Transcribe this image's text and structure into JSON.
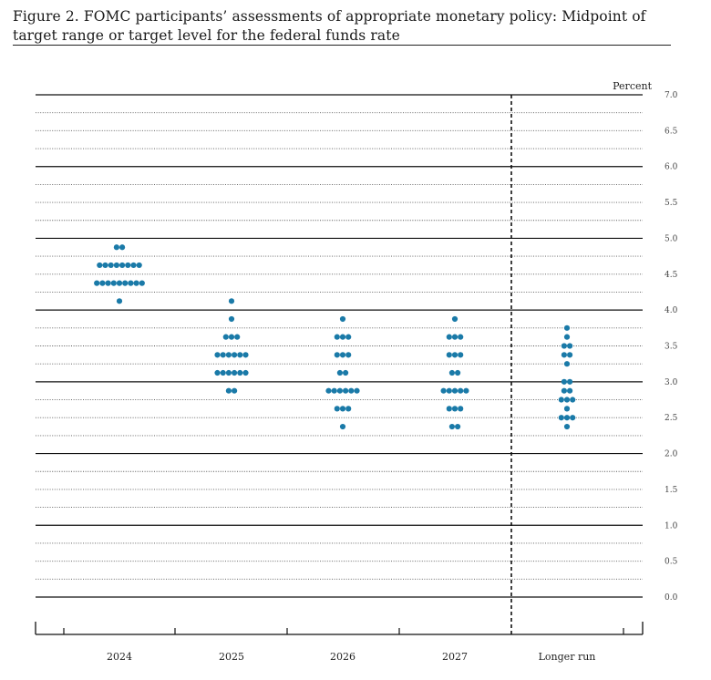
{
  "figure": {
    "title": "Figure 2.  FOMC participants’ assessments of appropriate monetary policy:  Midpoint of target range or target level for the federal funds rate"
  },
  "chart_data": {
    "type": "scatter",
    "subtype": "dot-plot",
    "ylabel": "Percent",
    "ylim": [
      0,
      7
    ],
    "yticks": [
      "0.0",
      "0.5",
      "1.0",
      "1.5",
      "2.0",
      "2.5",
      "3.0",
      "3.5",
      "4.0",
      "4.5",
      "5.0",
      "5.5",
      "6.0",
      "6.5",
      "7.0"
    ],
    "categories": [
      "2024",
      "2025",
      "2026",
      "2027",
      "Longer run"
    ],
    "dot_color": "#1a7aa8",
    "grid": "solid at whole percents, dotted at eighths",
    "divider_before": "Longer run",
    "dots": [
      {
        "category": "2024",
        "levels": [
          {
            "rate": 4.875,
            "count": 2
          },
          {
            "rate": 4.625,
            "count": 8
          },
          {
            "rate": 4.375,
            "count": 9
          },
          {
            "rate": 4.125,
            "count": 1
          }
        ]
      },
      {
        "category": "2025",
        "levels": [
          {
            "rate": 4.125,
            "count": 1
          },
          {
            "rate": 3.875,
            "count": 1
          },
          {
            "rate": 3.625,
            "count": 3
          },
          {
            "rate": 3.375,
            "count": 6
          },
          {
            "rate": 3.125,
            "count": 6
          },
          {
            "rate": 2.875,
            "count": 2
          }
        ]
      },
      {
        "category": "2026",
        "levels": [
          {
            "rate": 3.875,
            "count": 1
          },
          {
            "rate": 3.625,
            "count": 3
          },
          {
            "rate": 3.375,
            "count": 3
          },
          {
            "rate": 3.125,
            "count": 2
          },
          {
            "rate": 2.875,
            "count": 6
          },
          {
            "rate": 2.625,
            "count": 3
          },
          {
            "rate": 2.375,
            "count": 1
          }
        ]
      },
      {
        "category": "2027",
        "levels": [
          {
            "rate": 3.875,
            "count": 1
          },
          {
            "rate": 3.625,
            "count": 3
          },
          {
            "rate": 3.375,
            "count": 3
          },
          {
            "rate": 3.125,
            "count": 2
          },
          {
            "rate": 2.875,
            "count": 5
          },
          {
            "rate": 2.625,
            "count": 3
          },
          {
            "rate": 2.375,
            "count": 2
          }
        ]
      },
      {
        "category": "Longer run",
        "levels": [
          {
            "rate": 3.75,
            "count": 1
          },
          {
            "rate": 3.625,
            "count": 1
          },
          {
            "rate": 3.5,
            "count": 2
          },
          {
            "rate": 3.375,
            "count": 2
          },
          {
            "rate": 3.25,
            "count": 1
          },
          {
            "rate": 3.0,
            "count": 2
          },
          {
            "rate": 2.875,
            "count": 2
          },
          {
            "rate": 2.75,
            "count": 3
          },
          {
            "rate": 2.625,
            "count": 1
          },
          {
            "rate": 2.5,
            "count": 3
          },
          {
            "rate": 2.375,
            "count": 1
          }
        ]
      }
    ]
  }
}
